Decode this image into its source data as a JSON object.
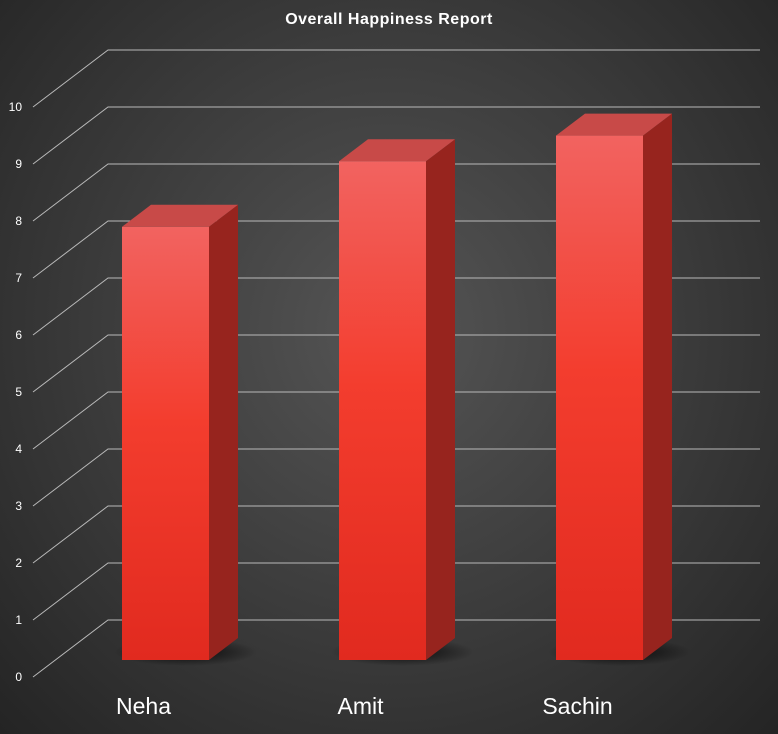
{
  "chart_data": {
    "type": "bar",
    "title": "Overall Happiness Report",
    "xlabel": "",
    "ylabel": "",
    "categories": [
      "Neha",
      "Amit",
      "Sachin"
    ],
    "series": [
      {
        "values": [
          7.6,
          8.75,
          9.2
        ]
      }
    ],
    "ylim": [
      0,
      10
    ],
    "yticks": [
      "0",
      "1",
      "2",
      "3",
      "4",
      "5",
      "6",
      "7",
      "8",
      "9",
      "10"
    ],
    "grid": true,
    "legend": "none",
    "colors": {
      "bar_front_top": "#f26360",
      "bar_front_bottom": "#e12a1f",
      "bar_top": "#c84a48",
      "bar_side": "#97241e",
      "gridline": "#b9b9b9",
      "text": "#ffffff"
    }
  }
}
